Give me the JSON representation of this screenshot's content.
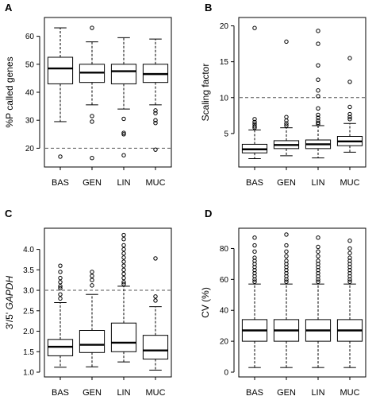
{
  "chart_data": [
    {
      "type": "box",
      "panel": "A",
      "ylabel": "%P called genes",
      "ylabel_parts": [
        {
          "text": "%P called genes",
          "italic": false
        }
      ],
      "categories": [
        "BAS",
        "GEN",
        "LIN",
        "MUC"
      ],
      "ylim": [
        15,
        65
      ],
      "yticks": [
        20,
        30,
        40,
        50,
        60
      ],
      "reference_line": 20,
      "boxes": [
        {
          "q1": 43,
          "median": 48.5,
          "q3": 52.5,
          "whisker_low": 29.5,
          "whisker_high": 63,
          "outliers": [
            17
          ]
        },
        {
          "q1": 43.5,
          "median": 47,
          "q3": 50,
          "whisker_low": 35.5,
          "whisker_high": 58,
          "outliers": [
            63,
            31.5,
            29.5,
            16.5
          ]
        },
        {
          "q1": 43,
          "median": 47.5,
          "q3": 50,
          "whisker_low": 34,
          "whisker_high": 59.5,
          "outliers": [
            30.5,
            25.5,
            25,
            17.5
          ]
        },
        {
          "q1": 43.5,
          "median": 46.5,
          "q3": 50,
          "whisker_low": 35.5,
          "whisker_high": 59,
          "outliers": [
            33.5,
            32.5,
            30,
            29,
            19.5
          ]
        }
      ]
    },
    {
      "type": "box",
      "panel": "B",
      "ylabel": "Scaling factor",
      "ylabel_parts": [
        {
          "text": "Scaling factor",
          "italic": false
        }
      ],
      "categories": [
        "BAS",
        "GEN",
        "LIN",
        "MUC"
      ],
      "ylim": [
        1,
        20.5
      ],
      "yticks": [
        5,
        10,
        15,
        20
      ],
      "reference_line": 10,
      "boxes": [
        {
          "q1": 2.3,
          "median": 2.8,
          "q3": 3.5,
          "whisker_low": 1.5,
          "whisker_high": 5.5,
          "outliers": [
            19.7,
            7,
            6.6,
            6.3,
            6.0,
            5.8
          ]
        },
        {
          "q1": 2.9,
          "median": 3.4,
          "q3": 4.0,
          "whisker_low": 1.9,
          "whisker_high": 5.8,
          "outliers": [
            17.8,
            7.3,
            6.8,
            6.4,
            6.1
          ]
        },
        {
          "q1": 2.9,
          "median": 3.5,
          "q3": 4.1,
          "whisker_low": 1.6,
          "whisker_high": 6.1,
          "outliers": [
            19.3,
            17.5,
            14.5,
            12.5,
            11,
            10.2,
            8.5,
            7.6,
            7.2,
            6.8,
            6.5,
            6.3
          ]
        },
        {
          "q1": 3.3,
          "median": 3.9,
          "q3": 4.6,
          "whisker_low": 2.4,
          "whisker_high": 6.4,
          "outliers": [
            15.5,
            12.2,
            8.7,
            7.7,
            7.3,
            7.0
          ]
        }
      ]
    },
    {
      "type": "box",
      "panel": "C",
      "ylabel": "3'/5' GAPDH",
      "ylabel_parts": [
        {
          "text": "3'/5' ",
          "italic": false
        },
        {
          "text": "GAPDH",
          "italic": true
        }
      ],
      "categories": [
        "BAS",
        "GEN",
        "LIN",
        "MUC"
      ],
      "ylim": [
        1.0,
        4.4
      ],
      "yticks": [
        1.0,
        1.5,
        2.0,
        2.5,
        3.0,
        3.5,
        4.0
      ],
      "reference_line": 3.0,
      "boxes": [
        {
          "q1": 1.4,
          "median": 1.62,
          "q3": 1.8,
          "whisker_low": 1.12,
          "whisker_high": 2.7,
          "outliers": [
            3.6,
            3.45,
            3.3,
            3.2,
            3.1,
            3.05,
            2.9,
            2.8
          ]
        },
        {
          "q1": 1.48,
          "median": 1.67,
          "q3": 2.02,
          "whisker_low": 1.13,
          "whisker_high": 2.9,
          "outliers": [
            3.45,
            3.35,
            3.25,
            3.12
          ]
        },
        {
          "q1": 1.5,
          "median": 1.72,
          "q3": 2.2,
          "whisker_low": 1.25,
          "whisker_high": 3.1,
          "outliers": [
            4.35,
            4.25,
            4.1,
            4.0,
            3.9,
            3.8,
            3.7,
            3.6,
            3.5,
            3.4,
            3.3,
            3.2,
            3.15
          ]
        },
        {
          "q1": 1.32,
          "median": 1.53,
          "q3": 1.9,
          "whisker_low": 1.05,
          "whisker_high": 2.6,
          "outliers": [
            3.78,
            2.85,
            2.75
          ]
        }
      ]
    },
    {
      "type": "box",
      "panel": "D",
      "ylabel": "CV (%)",
      "ylabel_parts": [
        {
          "text": "CV (%)",
          "italic": false
        }
      ],
      "categories": [
        "BAS",
        "GEN",
        "LIN",
        "MUC"
      ],
      "ylim": [
        0,
        90
      ],
      "yticks": [
        0,
        20,
        40,
        60,
        80
      ],
      "reference_line": null,
      "boxes": [
        {
          "q1": 20,
          "median": 27,
          "q3": 34,
          "whisker_low": 3,
          "whisker_high": 57,
          "outliers": [
            87,
            82,
            78,
            74,
            72,
            70,
            68,
            66,
            64,
            62,
            60,
            58.5
          ]
        },
        {
          "q1": 20,
          "median": 27,
          "q3": 34,
          "whisker_low": 3,
          "whisker_high": 57,
          "outliers": [
            89,
            82,
            78,
            75,
            72,
            70,
            68,
            66,
            64,
            62,
            60,
            58.5
          ]
        },
        {
          "q1": 20,
          "median": 27,
          "q3": 34,
          "whisker_low": 3,
          "whisker_high": 57,
          "outliers": [
            87,
            81,
            78,
            75,
            72,
            70,
            68,
            66,
            64,
            62,
            60,
            58.5
          ]
        },
        {
          "q1": 20,
          "median": 27,
          "q3": 34,
          "whisker_low": 3,
          "whisker_high": 57,
          "outliers": [
            85,
            80,
            77,
            74,
            72,
            70,
            68,
            66,
            64,
            62,
            60,
            58.5
          ]
        }
      ]
    }
  ]
}
